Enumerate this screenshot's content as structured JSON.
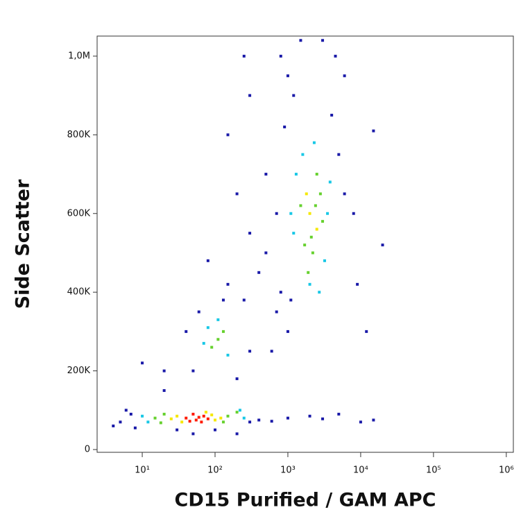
{
  "chart_data": {
    "type": "scatter",
    "x_label": "CD15 Purified / GAM APC",
    "y_label": "Side Scatter",
    "x_log": true,
    "xlim": [
      2.4,
      1250000
    ],
    "xticks": [
      {
        "value": 10,
        "label": "10¹"
      },
      {
        "value": 100,
        "label": "10²"
      },
      {
        "value": 1000,
        "label": "10³"
      },
      {
        "value": 10000,
        "label": "10⁴"
      },
      {
        "value": 100000,
        "label": "10⁵"
      },
      {
        "value": 1000000,
        "label": "10⁶"
      }
    ],
    "ylim": [
      -7000,
      1051000
    ],
    "yticks": [
      0,
      {
        "value": 200000,
        "label": "200K"
      },
      {
        "value": 400000,
        "label": "400K"
      },
      {
        "value": 600000,
        "label": "600K"
      },
      {
        "value": 800000,
        "label": "800K"
      },
      {
        "value": 1000000,
        "label": "1,0M"
      }
    ],
    "series": [
      {
        "color": "#1a1aa8",
        "x": [
          5,
          7,
          4,
          6,
          8,
          300,
          400,
          600,
          1000,
          2000,
          3000,
          10000,
          15000,
          50,
          200,
          300,
          40,
          60,
          250,
          150,
          80,
          300,
          200,
          400,
          500,
          150,
          300,
          250,
          800,
          1000,
          1200,
          4000,
          5000,
          6000,
          8000,
          15000,
          20000,
          9000,
          700,
          1000,
          800,
          900,
          4500,
          3000,
          1500,
          600,
          10,
          20,
          50,
          200,
          12000,
          500,
          5000,
          30,
          100,
          130,
          20,
          700,
          6000,
          1100
        ],
        "values": [
          70000,
          90000,
          60000,
          100000,
          55000,
          70000,
          75000,
          72000,
          80000,
          85000,
          78000,
          70000,
          75000,
          200000,
          180000,
          250000,
          300000,
          350000,
          380000,
          420000,
          480000,
          550000,
          650000,
          450000,
          700000,
          800000,
          900000,
          1000000,
          1000000,
          950000,
          900000,
          850000,
          750000,
          650000,
          600000,
          810000,
          520000,
          420000,
          350000,
          300000,
          400000,
          820000,
          1000000,
          1040000,
          1040000,
          250000,
          220000,
          150000,
          40000,
          40000,
          300000,
          500000,
          90000,
          50000,
          50000,
          380000,
          200000,
          600000,
          950000,
          380000
        ]
      },
      {
        "color": "#19c8e6",
        "x": [
          10,
          12,
          250,
          220,
          80,
          150,
          70,
          110,
          1200,
          3500,
          1300,
          3200,
          2000,
          1600,
          2700,
          1100,
          3800,
          2300
        ],
        "values": [
          85000,
          70000,
          80000,
          100000,
          310000,
          240000,
          270000,
          330000,
          550000,
          600000,
          700000,
          480000,
          420000,
          750000,
          400000,
          600000,
          680000,
          780000
        ]
      },
      {
        "color": "#66d12e",
        "x": [
          15,
          20,
          150,
          130,
          18,
          200,
          110,
          90,
          130,
          1500,
          2200,
          2800,
          1700,
          2500,
          3000,
          1900,
          2100,
          2400
        ],
        "values": [
          80000,
          90000,
          85000,
          70000,
          68000,
          95000,
          280000,
          260000,
          300000,
          620000,
          500000,
          650000,
          520000,
          700000,
          580000,
          450000,
          540000,
          620000
        ]
      },
      {
        "color": "#f5e800",
        "x": [
          30,
          90,
          35,
          100,
          75,
          25,
          120,
          2000,
          2500,
          1800
        ],
        "values": [
          85000,
          88000,
          70000,
          75000,
          95000,
          78000,
          80000,
          600000,
          560000,
          650000
        ]
      },
      {
        "color": "#ff1a00",
        "x": [
          40,
          55,
          70,
          50,
          65,
          80,
          45,
          60
        ],
        "values": [
          80000,
          75000,
          85000,
          90000,
          70000,
          78000,
          72000,
          82000
        ]
      }
    ]
  }
}
